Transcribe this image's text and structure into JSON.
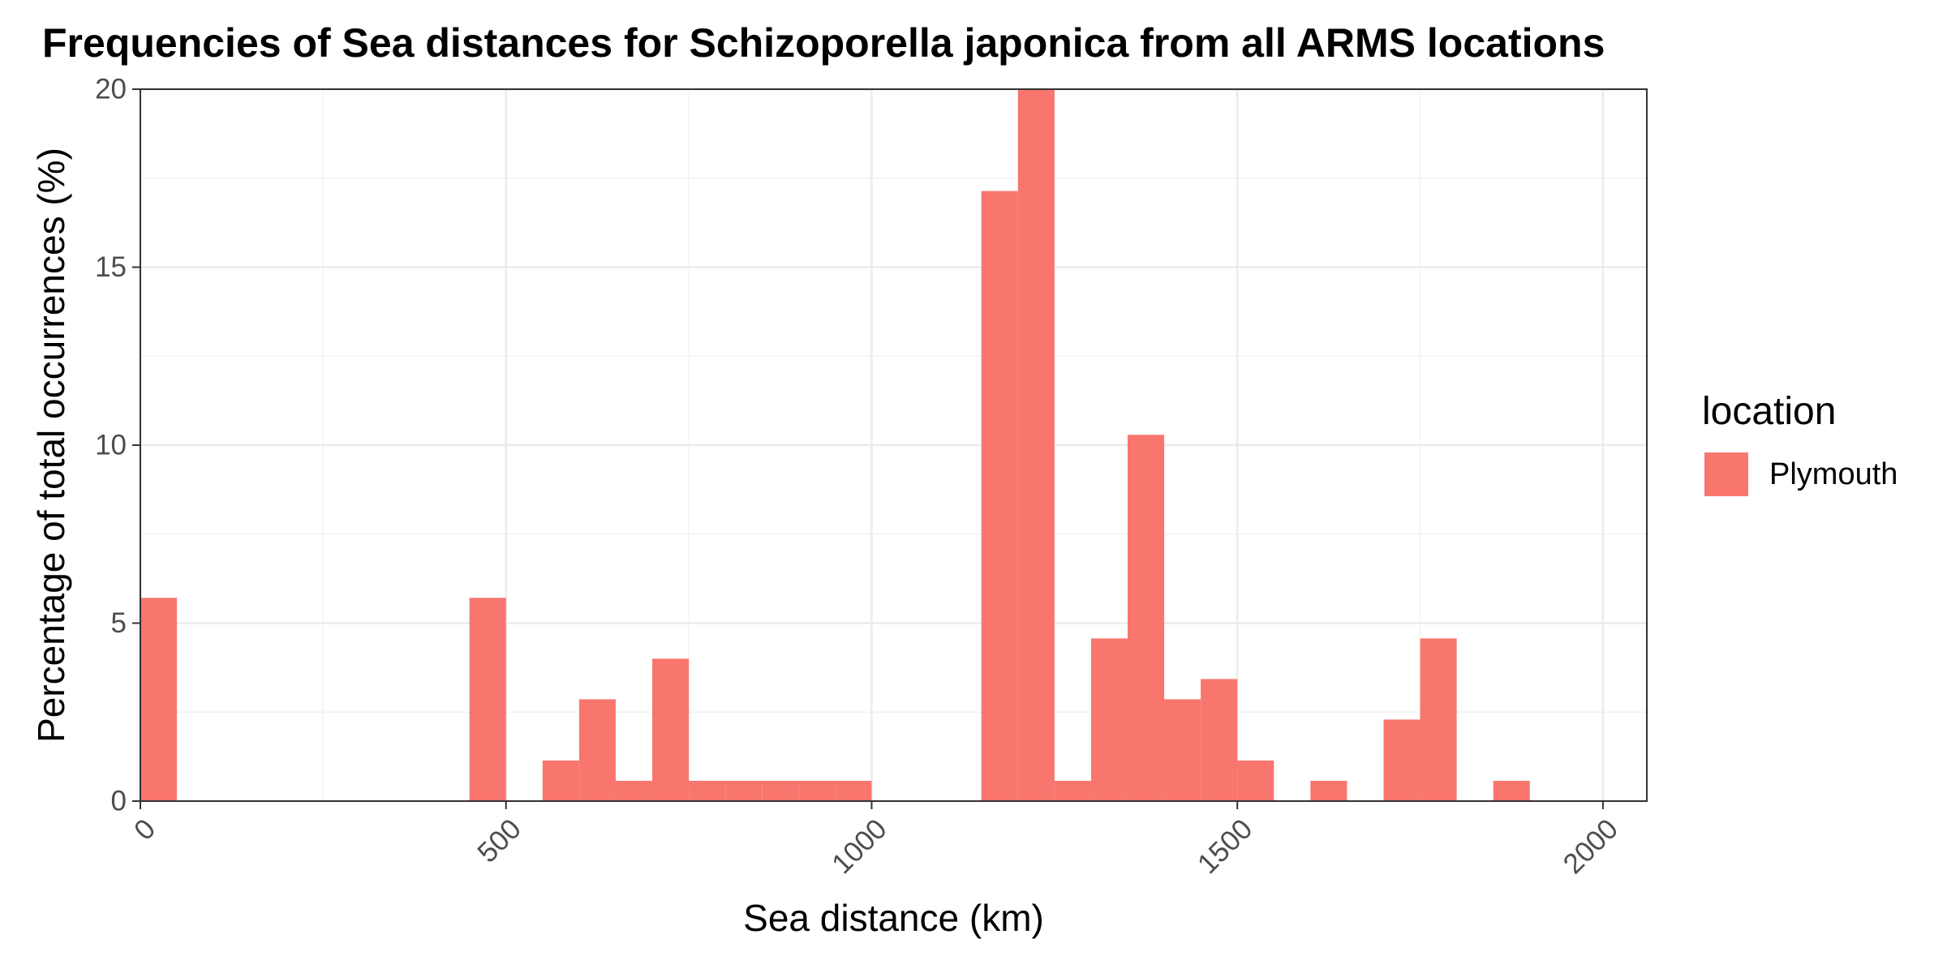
{
  "chart_data": {
    "type": "bar",
    "title": "Frequencies of Sea distances for Schizoporella japonica from all ARMS locations",
    "xlabel": "Sea distance (km)",
    "ylabel": "Percentage of total occurrences (%)",
    "xlim": [
      0,
      2060
    ],
    "ylim": [
      0,
      20
    ],
    "x_ticks": [
      0,
      500,
      1000,
      1500,
      2000
    ],
    "x_tick_labels": [
      "0",
      "500",
      "1000",
      "1500",
      "2000"
    ],
    "y_ticks": [
      0,
      5,
      10,
      15,
      20
    ],
    "y_tick_labels": [
      "0",
      "5",
      "10",
      "15",
      "20"
    ],
    "bin_width": 50,
    "grid": true,
    "legend": {
      "title": "location",
      "placement": "right",
      "entries": [
        "Plymouth"
      ]
    },
    "series": [
      {
        "name": "Plymouth",
        "color": "#F8766D",
        "bins": [
          {
            "start": 0,
            "end": 50,
            "value": 5.71
          },
          {
            "start": 450,
            "end": 500,
            "value": 5.71
          },
          {
            "start": 550,
            "end": 600,
            "value": 1.14
          },
          {
            "start": 600,
            "end": 650,
            "value": 2.86
          },
          {
            "start": 650,
            "end": 700,
            "value": 0.57
          },
          {
            "start": 700,
            "end": 750,
            "value": 4.0
          },
          {
            "start": 750,
            "end": 800,
            "value": 0.57
          },
          {
            "start": 800,
            "end": 850,
            "value": 0.57
          },
          {
            "start": 850,
            "end": 900,
            "value": 0.57
          },
          {
            "start": 900,
            "end": 950,
            "value": 0.57
          },
          {
            "start": 950,
            "end": 1000,
            "value": 0.57
          },
          {
            "start": 1150,
            "end": 1200,
            "value": 17.14
          },
          {
            "start": 1200,
            "end": 1250,
            "value": 20.0
          },
          {
            "start": 1250,
            "end": 1300,
            "value": 0.57
          },
          {
            "start": 1300,
            "end": 1350,
            "value": 4.57
          },
          {
            "start": 1350,
            "end": 1400,
            "value": 10.29
          },
          {
            "start": 1400,
            "end": 1450,
            "value": 2.86
          },
          {
            "start": 1450,
            "end": 1500,
            "value": 3.43
          },
          {
            "start": 1500,
            "end": 1550,
            "value": 1.14
          },
          {
            "start": 1600,
            "end": 1650,
            "value": 0.57
          },
          {
            "start": 1700,
            "end": 1750,
            "value": 2.29
          },
          {
            "start": 1750,
            "end": 1800,
            "value": 4.57
          },
          {
            "start": 1850,
            "end": 1900,
            "value": 0.57
          }
        ]
      }
    ]
  }
}
